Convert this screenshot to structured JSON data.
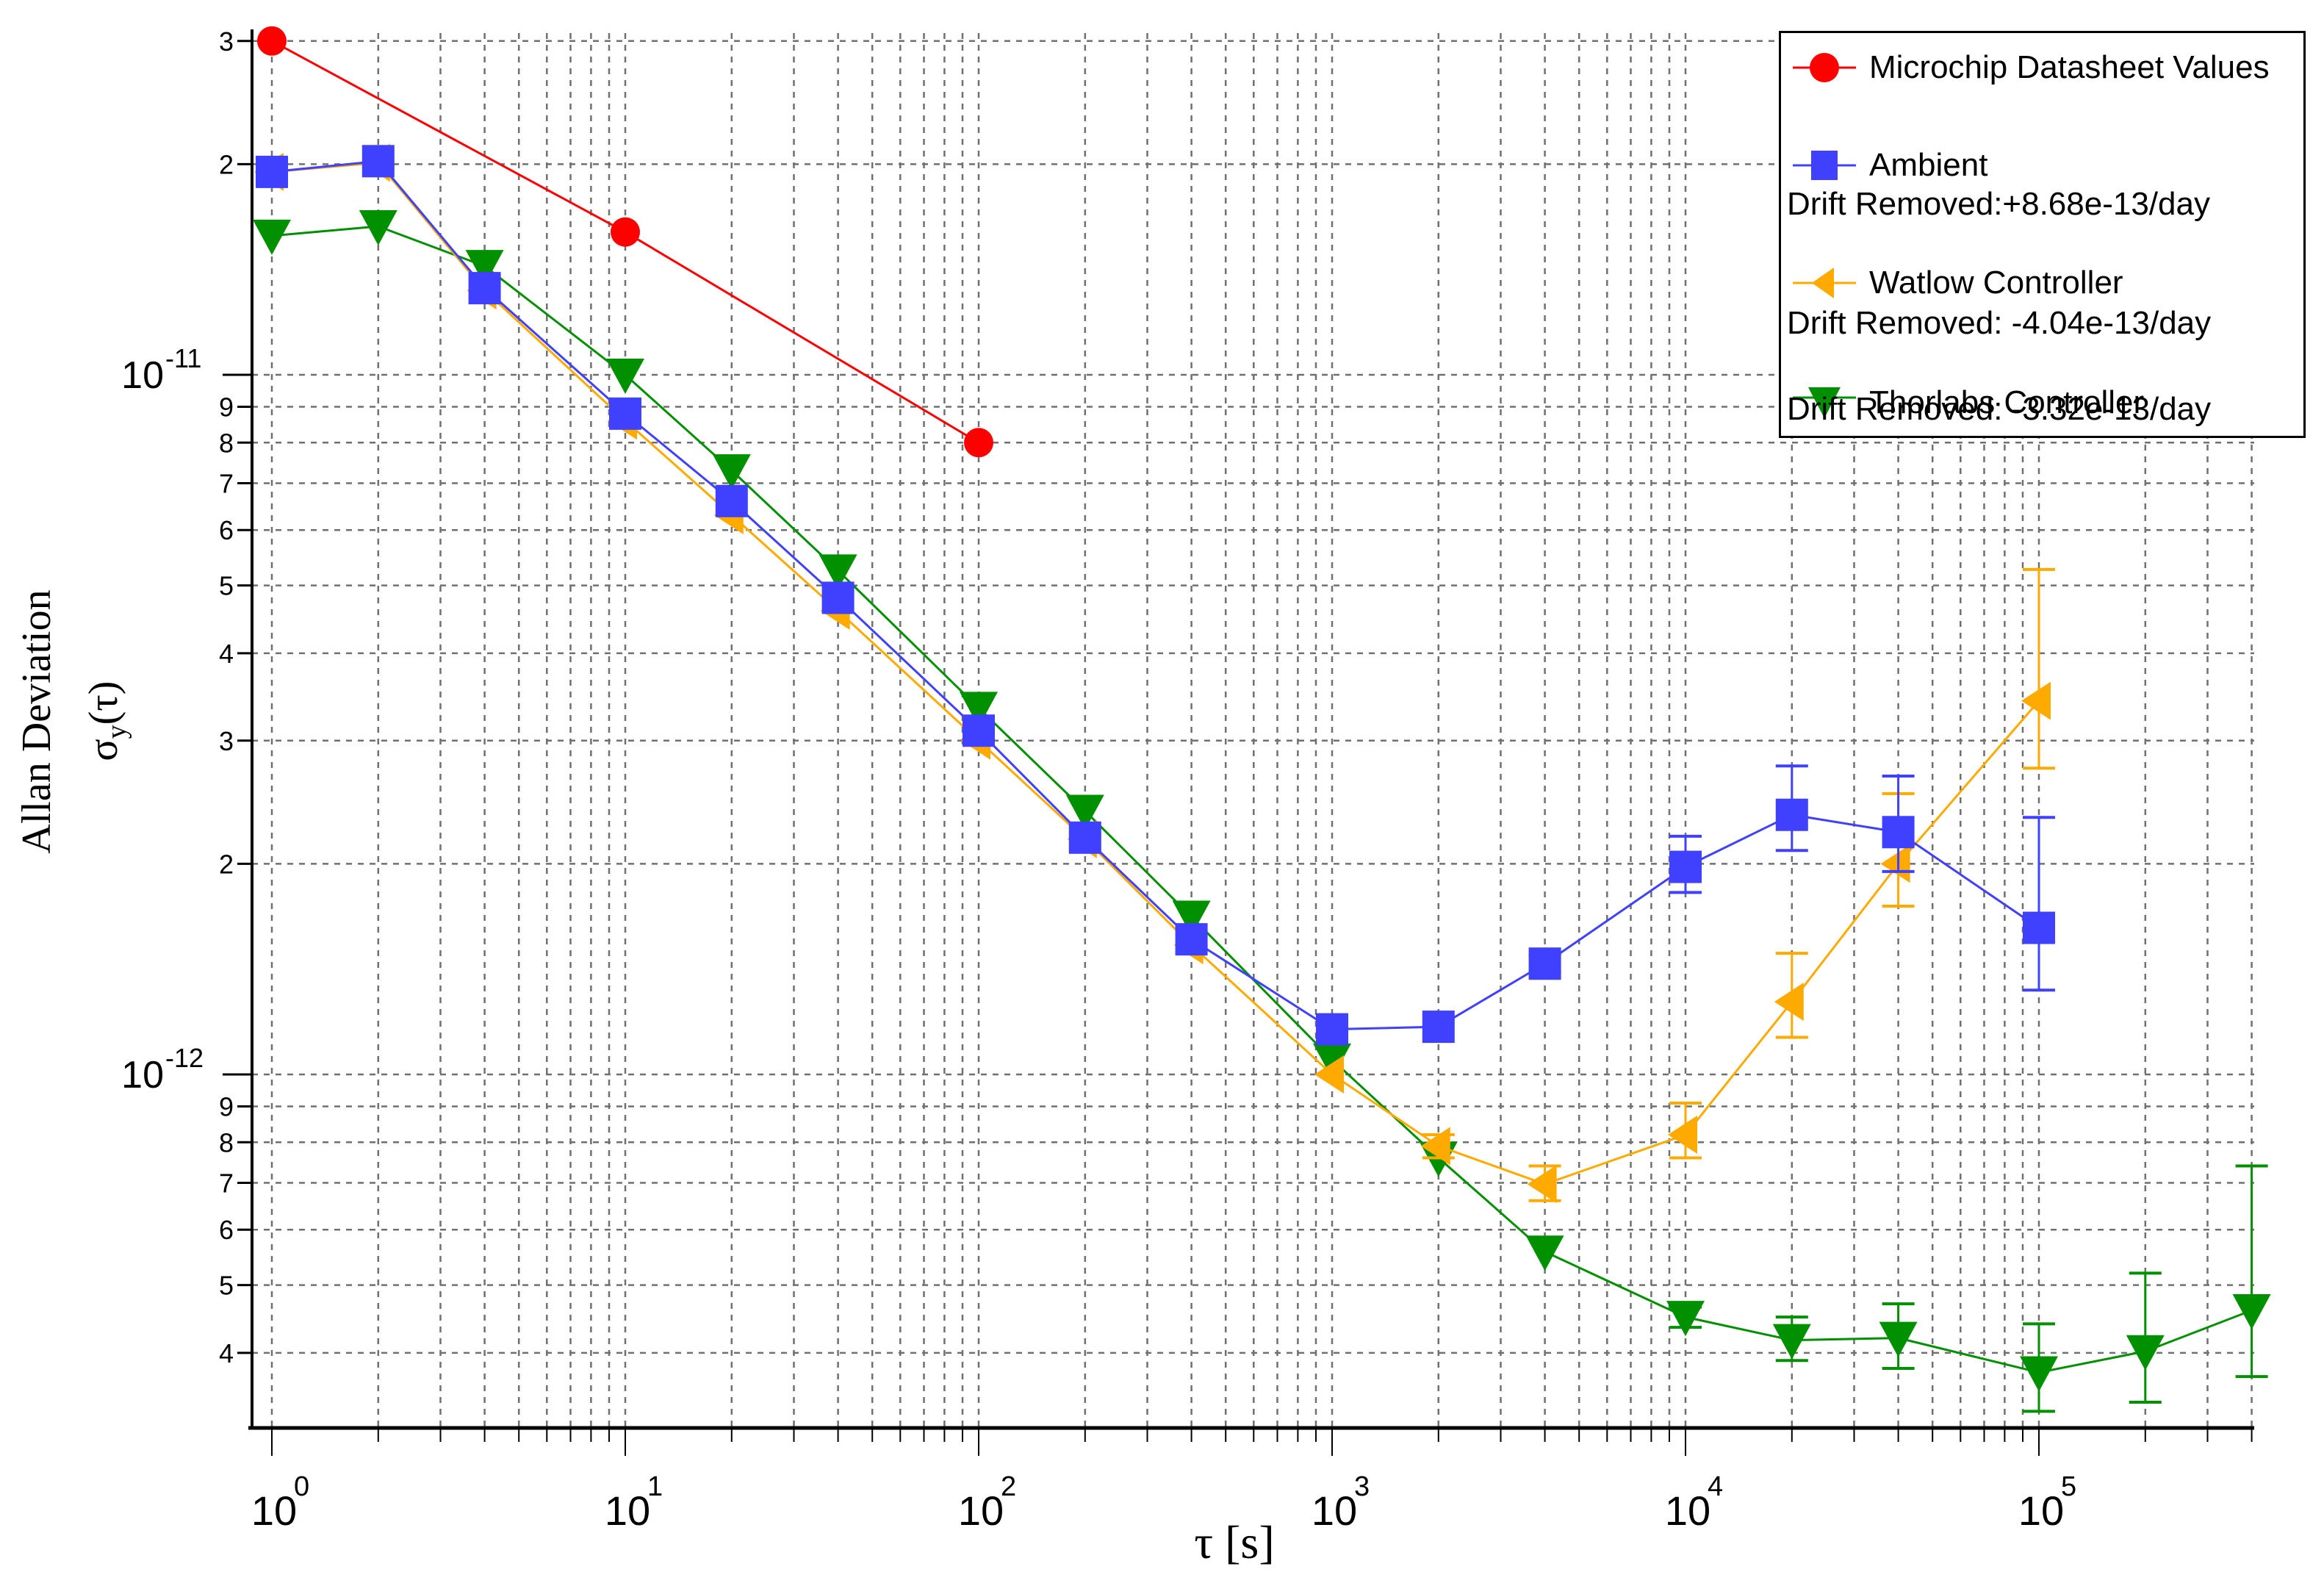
{
  "chart_data": {
    "type": "line",
    "title": "",
    "xlabel": "τ [s]",
    "ylabel": "Allan Deviation σy(τ)",
    "xscale": "log",
    "yscale": "log",
    "xlim": [
      1,
      400000
    ],
    "ylim": [
      3.2e-13,
      3.3e-11
    ],
    "grid": true,
    "legend_position": "upper right",
    "x_tick_labels": [
      "10^0",
      "10^1",
      "10^2",
      "10^3",
      "10^4",
      "10^5"
    ],
    "y_tick_labels": [
      "3",
      "2",
      "10^-11",
      "9",
      "8",
      "7",
      "6",
      "5",
      "4",
      "3",
      "2",
      "10^-12",
      "9",
      "8",
      "7",
      "6",
      "5",
      "4"
    ],
    "series": [
      {
        "name": "Microchip Datasheet Values",
        "drift_note": "",
        "color": "#ff0000",
        "marker": "circle",
        "x": [
          1,
          10,
          100
        ],
        "values": [
          3e-11,
          1.6e-11,
          8e-12
        ]
      },
      {
        "name": "Ambient",
        "drift_note": "Drift Removed:+8.68e-13/day",
        "color": "#4040ff",
        "marker": "square",
        "x": [
          1,
          2,
          4,
          10,
          20,
          40,
          100,
          200,
          400,
          1000,
          2000,
          4000,
          10000,
          20000,
          40000,
          100000
        ],
        "values": [
          1.95e-11,
          2.02e-11,
          1.33e-11,
          8.8e-12,
          6.6e-12,
          4.8e-12,
          3.1e-12,
          2.18e-12,
          1.56e-12,
          1.16e-12,
          1.17e-12,
          1.44e-12,
          1.98e-12,
          2.35e-12,
          2.22e-12,
          1.62e-12
        ],
        "err_low": [
          null,
          null,
          null,
          null,
          null,
          null,
          null,
          null,
          null,
          null,
          null,
          1.4e-12,
          1.82e-12,
          2.09e-12,
          1.95e-12,
          1.32e-12
        ],
        "err_high": [
          null,
          null,
          null,
          null,
          null,
          null,
          null,
          null,
          null,
          null,
          null,
          1.48e-12,
          2.19e-12,
          2.76e-12,
          2.67e-12,
          2.33e-12
        ]
      },
      {
        "name": "Watlow Controller",
        "drift_note": "Drift Removed: -4.04e-13/day",
        "color": "#ffaa00",
        "marker": "triangle-left",
        "x": [
          1,
          2,
          4,
          10,
          20,
          40,
          100,
          200,
          400,
          1000,
          2000,
          4000,
          10000,
          20000,
          40000,
          100000
        ],
        "values": [
          1.95e-11,
          2.01e-11,
          1.32e-11,
          8.6e-12,
          6.3e-12,
          4.6e-12,
          3e-12,
          2.17e-12,
          1.53e-12,
          1e-12,
          7.9e-13,
          6.97e-13,
          8.2e-13,
          1.27e-12,
          2e-12,
          3.42e-12
        ],
        "err_low": [
          null,
          null,
          null,
          null,
          null,
          null,
          null,
          null,
          null,
          null,
          7.6e-13,
          6.6e-13,
          7.6e-13,
          1.13e-12,
          1.74e-12,
          2.74e-12
        ],
        "err_high": [
          null,
          null,
          null,
          null,
          null,
          null,
          null,
          null,
          null,
          null,
          8.2e-13,
          7.4e-13,
          9.1e-13,
          1.49e-12,
          2.52e-12,
          5.27e-12
        ]
      },
      {
        "name": "Thorlabs Controller",
        "drift_note": "Drift Removed: -3.32e-13/day",
        "color": "#009000",
        "marker": "triangle-down",
        "x": [
          1,
          2,
          4,
          10,
          20,
          40,
          100,
          200,
          400,
          1000,
          2000,
          4000,
          10000,
          20000,
          40000,
          100000,
          200000,
          400000
        ],
        "values": [
          1.58e-11,
          1.63e-11,
          1.43e-11,
          1e-11,
          7.3e-12,
          5.25e-12,
          3.34e-12,
          2.38e-12,
          1.68e-12,
          1.05e-12,
          7.6e-13,
          5.58e-13,
          4.5e-13,
          4.17e-13,
          4.2e-13,
          3.75e-13,
          4.02e-13,
          4.6e-13
        ],
        "err_low": [
          null,
          null,
          null,
          null,
          null,
          null,
          null,
          null,
          null,
          null,
          null,
          null,
          4.35e-13,
          3.9e-13,
          3.8e-13,
          3.3e-13,
          3.4e-13,
          3.7e-13
        ],
        "err_high": [
          null,
          null,
          null,
          null,
          null,
          null,
          null,
          null,
          null,
          null,
          null,
          null,
          4.65e-13,
          4.5e-13,
          4.7e-13,
          4.4e-13,
          5.2e-13,
          7.4e-13
        ]
      }
    ]
  },
  "axes": {
    "xlabel_tau": "τ",
    "xlabel_unit": "[s]",
    "ylabel_line1": "Allan Deviation",
    "ylabel_sigma": "σ",
    "ylabel_sub": "y",
    "ylabel_arg": "(τ)"
  },
  "legend": {
    "items": [
      {
        "label": "Microchip Datasheet Values",
        "drift": ""
      },
      {
        "label": "Ambient",
        "drift": "Drift Removed:+8.68e-13/day"
      },
      {
        "label": "Watlow Controller",
        "drift": "Drift Removed: -4.04e-13/day"
      },
      {
        "label": "Thorlabs Controller",
        "drift": "Drift Removed: -3.32e-13/day"
      }
    ]
  }
}
